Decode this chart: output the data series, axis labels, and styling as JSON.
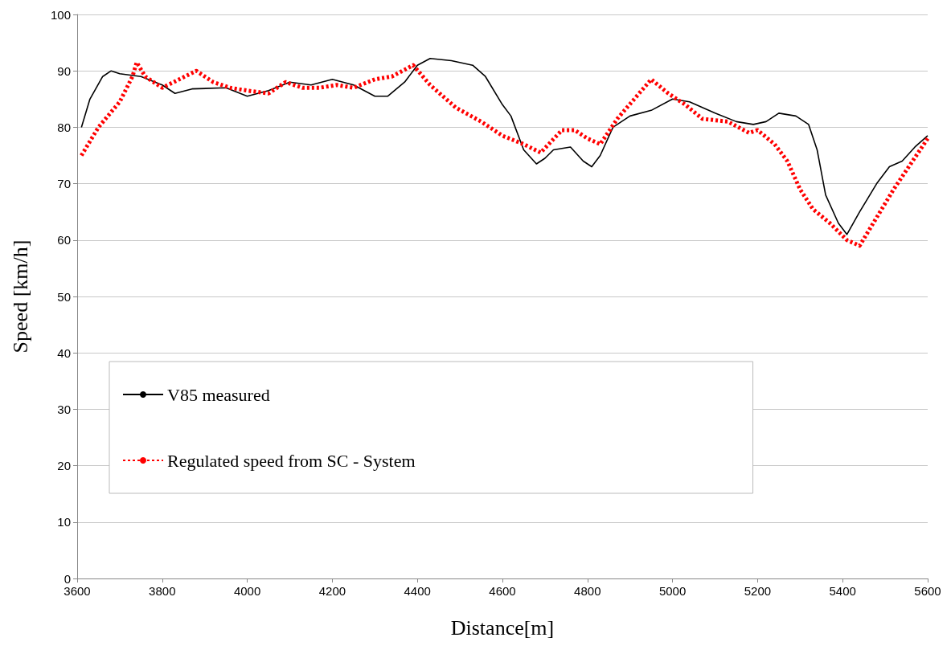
{
  "chart_data": {
    "type": "line",
    "xlabel": "Distance[m]",
    "ylabel": "Speed [km/h]",
    "xlim": [
      3600,
      5600
    ],
    "xticks": [
      3600,
      3800,
      4000,
      4200,
      4400,
      4600,
      4800,
      5000,
      5200,
      5400,
      5600
    ],
    "ylim": [
      0,
      100
    ],
    "yticks": [
      0,
      10,
      20,
      30,
      40,
      50,
      60,
      70,
      80,
      90,
      100
    ],
    "grid": "y",
    "legend": "bottom left",
    "marker": "none",
    "series": [
      {
        "name": "V85 measured",
        "color": "#000000",
        "line_style": "solid",
        "x": [
          3610,
          3630,
          3660,
          3680,
          3700,
          3750,
          3800,
          3830,
          3870,
          3950,
          4000,
          4050,
          4100,
          4150,
          4200,
          4250,
          4300,
          4330,
          4370,
          4400,
          4430,
          4480,
          4530,
          4560,
          4600,
          4620,
          4650,
          4680,
          4700,
          4720,
          4760,
          4790,
          4810,
          4830,
          4860,
          4900,
          4950,
          5000,
          5040,
          5100,
          5150,
          5190,
          5220,
          5250,
          5290,
          5320,
          5340,
          5360,
          5390,
          5410,
          5440,
          5480,
          5510,
          5540,
          5570,
          5600
        ],
        "values": [
          80,
          85,
          89,
          90,
          89.5,
          89,
          87.5,
          86,
          86.8,
          87,
          85.5,
          86.5,
          88,
          87.5,
          88.5,
          87.5,
          85.5,
          85.5,
          88,
          91,
          92.2,
          91.8,
          91,
          89,
          84,
          82,
          76,
          73.5,
          74.5,
          76,
          76.5,
          74,
          73,
          75,
          80,
          82,
          83,
          85,
          84.5,
          82.5,
          81,
          80.5,
          81,
          82.5,
          82,
          80.5,
          76,
          68,
          63,
          61,
          65,
          70,
          73,
          74,
          76.5,
          78.5
        ]
      },
      {
        "name": "Regulated speed from SC - System",
        "color": "#ff0000",
        "line_style": "dashed",
        "x": [
          3610,
          3650,
          3700,
          3730,
          3740,
          3760,
          3800,
          3840,
          3880,
          3920,
          3960,
          4000,
          4050,
          4090,
          4130,
          4170,
          4210,
          4250,
          4300,
          4340,
          4390,
          4430,
          4490,
          4550,
          4600,
          4650,
          4690,
          4740,
          4770,
          4800,
          4830,
          4870,
          4910,
          4950,
          4990,
          5030,
          5070,
          5130,
          5180,
          5200,
          5240,
          5270,
          5300,
          5330,
          5370,
          5410,
          5440,
          5480,
          5520,
          5560,
          5600
        ],
        "values": [
          75,
          80,
          84.5,
          89,
          91.5,
          89,
          87,
          88.5,
          90,
          88,
          87,
          86.5,
          86,
          88,
          87,
          87,
          87.5,
          87,
          88.5,
          89,
          91,
          87.5,
          83.5,
          81,
          78.5,
          77,
          75.5,
          79.5,
          79.5,
          78,
          77,
          81.5,
          85,
          88.5,
          86,
          84,
          81.5,
          81,
          79,
          79.5,
          77,
          74,
          69,
          65.5,
          63,
          60,
          59,
          64,
          69,
          73.5,
          78
        ]
      }
    ]
  }
}
